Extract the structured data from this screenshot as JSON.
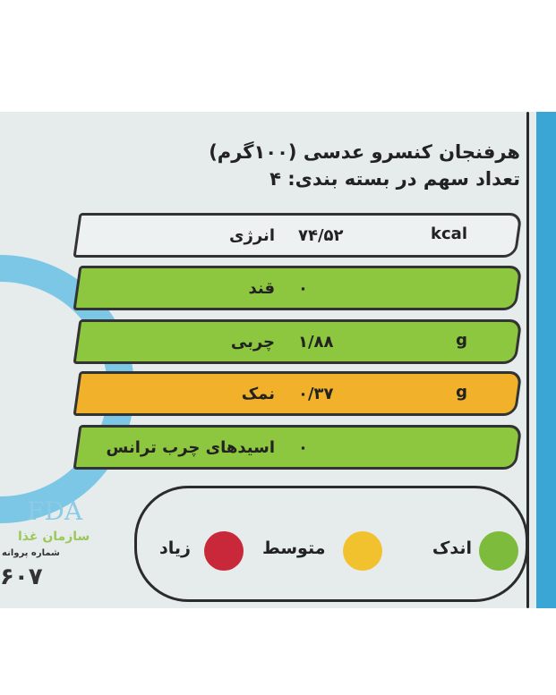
{
  "label": {
    "title_line1": "هرفنجان کنسرو عدسی (۱۰۰گرم)",
    "title_line2": "تعداد سهم در بسته بندی: ۴",
    "rows": [
      {
        "name": "انرژی",
        "value": "۷۴/۵۲",
        "unit": "kcal",
        "level": "none"
      },
      {
        "name": "قند",
        "value": "۰",
        "unit": "",
        "level": "low"
      },
      {
        "name": "چربی",
        "value": "۱/۸۸",
        "unit": "g",
        "level": "low"
      },
      {
        "name": "نمک",
        "value": "۰/۳۷",
        "unit": "g",
        "level": "medium"
      },
      {
        "name": "اسیدهای چرب ترانس",
        "value": "۰",
        "unit": "",
        "level": "low"
      }
    ],
    "legend": [
      {
        "label": "اندک",
        "color": "#7dbb3c"
      },
      {
        "label": "متوسط",
        "color": "#f2c22e"
      },
      {
        "label": "زیاد",
        "color": "#c8283a"
      }
    ]
  },
  "logo": {
    "text": "FDA",
    "org": "سازمان غذا",
    "license": "شماره پروانه",
    "number": "۶۰۷"
  }
}
